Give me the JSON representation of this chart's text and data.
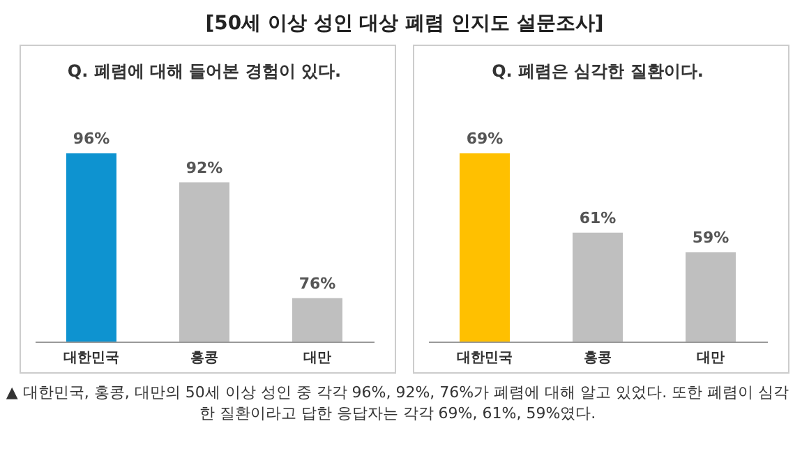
{
  "chart_data": [
    {
      "type": "other",
      "title": "[50세 이상 성인 대상 폐렴 인지도 설문조사]"
    },
    {
      "type": "bar",
      "title": "Q. 폐렴에 대해 들어본 경험이 있다.",
      "categories": [
        "대한민국",
        "홍콩",
        "대만"
      ],
      "values": [
        96,
        92,
        76
      ],
      "value_labels": [
        "96%",
        "92%",
        "76%"
      ],
      "colors": [
        "#0e93d0",
        "#bfbfbf",
        "#bfbfbf"
      ],
      "ylim": [
        70,
        96
      ],
      "tick_labels": "x"
    },
    {
      "type": "bar",
      "title": "Q. 폐렴은 심각한 질환이다.",
      "categories": [
        "대한민국",
        "홍콩",
        "대만"
      ],
      "values": [
        69,
        61,
        59
      ],
      "value_labels": [
        "69%",
        "61%",
        "59%"
      ],
      "colors": [
        "#ffc000",
        "#bfbfbf",
        "#bfbfbf"
      ],
      "ylim": [
        50,
        69
      ],
      "tick_labels": "x"
    },
    {
      "type": "other",
      "annotations": [
        "▲ 대한민국, 홍콩, 대만의 50세 이상 성인 중 각각 96%, 92%, 76%가 폐렴에 대해 알고 있었다. 또한 폐렴이 심각한 질환이라고 답한 응답자는 각각 69%, 61%, 59%였다."
      ]
    }
  ]
}
